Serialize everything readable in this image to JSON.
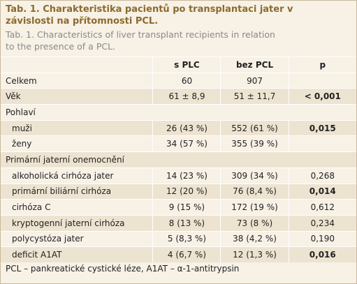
{
  "header": {
    "title": "Tab. 1. Charakteristika pacientů po transplantaci jater v závislosti na přítomnosti PCL.",
    "subtitle": "Tab. 1. Characteristics of liver transplant recipients in relation to the presence of a PCL."
  },
  "table": {
    "columns": [
      "s PLC",
      "bez PCL",
      "p"
    ],
    "rows": [
      {
        "label": "Celkem",
        "cells": [
          "60",
          "907"
        ]
      },
      {
        "label": "Věk",
        "cells": [
          "61 ± 8,9",
          "51 ± 11,7",
          "< 0,001"
        ],
        "bold_p": true
      },
      {
        "label": "Pohlaví",
        "section": true
      },
      {
        "label": "muži",
        "cells": [
          "26 (43 %)",
          "552 (61 %)",
          "0,015"
        ],
        "indent": true,
        "bold_p": true
      },
      {
        "label": "ženy",
        "cells": [
          "34 (57 %)",
          "355 (39 %)"
        ],
        "indent": true
      },
      {
        "label": "Primární jaterní onemocnění",
        "section": true
      },
      {
        "label": "alkoholická cirhóza jater",
        "cells": [
          "14 (23 %)",
          "309 (34 %)",
          "0,268"
        ],
        "indent": true
      },
      {
        "label": "primární biliární cirhóza",
        "cells": [
          "12 (20 %)",
          "76 (8,4 %)",
          "0,014"
        ],
        "indent": true,
        "bold_p": true
      },
      {
        "label": "cirhóza C",
        "cells": [
          "9 (15 %)",
          "172 (19 %)",
          "0,612"
        ],
        "indent": true
      },
      {
        "label": "kryptogenní jaterní cirhóza",
        "cells": [
          "8 (13 %)",
          "73 (8 %)",
          "0,234"
        ],
        "indent": true
      },
      {
        "label": "polycystóza jater",
        "cells": [
          "5 (8,3 %)",
          "38 (4,2 %)",
          "0,190"
        ],
        "indent": true
      },
      {
        "label": "deficit A1AT",
        "cells": [
          "4 (6,7 %)",
          "12 (1,3 %)",
          "0,016"
        ],
        "indent": true,
        "bold_p": true
      }
    ]
  },
  "footer": {
    "note": "PCL – pankreatické cystické léze,  A1AT – α-1-antitrypsin"
  }
}
